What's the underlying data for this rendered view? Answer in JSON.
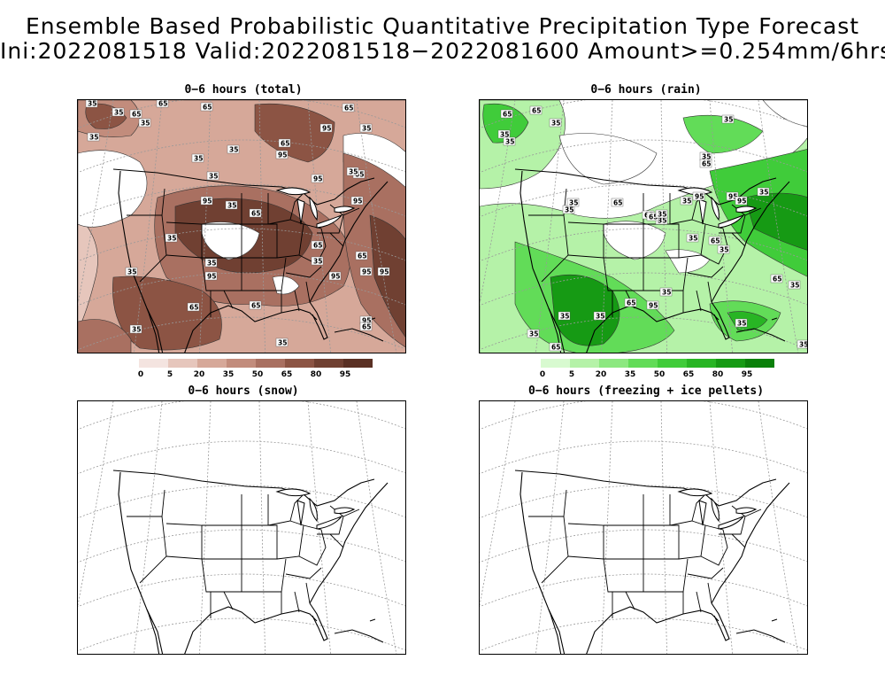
{
  "title": {
    "line1": "Ensemble Based Probabilistic Quantitative Precipitation Type Forecast",
    "line2": "Ini:2022081518 Valid:2022081518−2022081600 Amount>=0.254mm/6hrs"
  },
  "panels": [
    {
      "title": "0−6 hours (total)",
      "type": "total"
    },
    {
      "title": "0−6 hours (rain)",
      "type": "rain"
    },
    {
      "title": "0−6 hours (snow)",
      "type": "snow"
    },
    {
      "title": "0−6 hours (freezing + ice pellets)",
      "type": "freezing"
    }
  ],
  "colorbars": {
    "total": {
      "ticks": [
        "0",
        "5",
        "20",
        "35",
        "50",
        "65",
        "80",
        "95"
      ],
      "colors": [
        "#f4e4e0",
        "#e6c6bc",
        "#d6a899",
        "#c28c7c",
        "#a97061",
        "#8c5444",
        "#704032",
        "#5a3024"
      ]
    },
    "rain": {
      "ticks": [
        "0",
        "5",
        "20",
        "35",
        "50",
        "65",
        "80",
        "95"
      ],
      "colors": [
        "#d8fad0",
        "#b5f2a8",
        "#8ce880",
        "#62dc58",
        "#40cc3a",
        "#28b524",
        "#169a14",
        "#0a800a"
      ]
    }
  },
  "contour_labels": {
    "total": [
      "35",
      "65",
      "35",
      "35",
      "65",
      "65",
      "35",
      "65",
      "35",
      "95",
      "95",
      "35",
      "95",
      "35",
      "65",
      "35",
      "95",
      "95",
      "35",
      "65",
      "35",
      "35",
      "95",
      "65",
      "95",
      "95",
      "95",
      "65",
      "35",
      "35",
      "65",
      "35",
      "65",
      "95",
      "65",
      "35",
      "35",
      "65"
    ],
    "rain": [
      "65",
      "65",
      "35",
      "35",
      "35",
      "35",
      "35",
      "65",
      "35",
      "95",
      "35",
      "95",
      "95",
      "65",
      "35",
      "65",
      "35",
      "65",
      "35",
      "35",
      "65",
      "35",
      "35",
      "35",
      "95",
      "35",
      "35",
      "65",
      "65",
      "35",
      "35",
      "65",
      "35",
      "35"
    ]
  }
}
